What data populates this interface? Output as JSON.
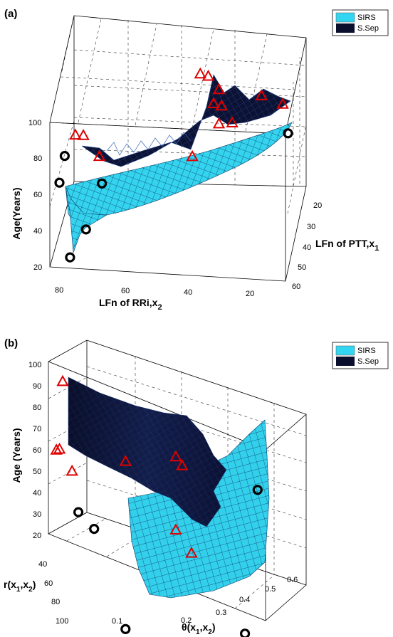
{
  "chart_data": [
    {
      "panel": "(a)",
      "type": "surface3d",
      "legend": {
        "placement": "top-right",
        "entries": [
          {
            "name": "SIRS",
            "color": "#33d6f0"
          },
          {
            "name": "S.Sep",
            "color": "#0a0f2e"
          }
        ]
      },
      "axes": {
        "x": {
          "label_main": "LFn of RRi,x",
          "label_sub": "2",
          "range": [
            0,
            90
          ],
          "ticks": [
            "80",
            "60",
            "40",
            "20"
          ]
        },
        "y": {
          "label_main": "LFn of PTT,x",
          "label_sub": "1",
          "range": [
            10,
            60
          ],
          "ticks": [
            "20",
            "30",
            "40",
            "50",
            "60"
          ]
        },
        "z": {
          "label": "Age(Years)",
          "range": [
            15,
            100
          ],
          "ticks": [
            "20",
            "40",
            "60",
            "80",
            "100"
          ]
        }
      },
      "grid": true,
      "sirs_points": [
        {
          "x": 84,
          "y": 15,
          "z": 22
        },
        {
          "x": 78,
          "y": 15,
          "z": 38
        },
        {
          "x": 88,
          "y": 15,
          "z": 63
        },
        {
          "x": 72,
          "y": 15,
          "z": 64
        },
        {
          "x": 86,
          "y": 15,
          "z": 78
        },
        {
          "x": 2,
          "y": 15,
          "z": 98
        }
      ],
      "ssep_points": [
        {
          "x": 82,
          "y": 15,
          "z": 90
        },
        {
          "x": 79,
          "y": 15,
          "z": 90
        },
        {
          "x": 73,
          "y": 15,
          "z": 79
        },
        {
          "x": 38,
          "y": 15,
          "z": 82
        },
        {
          "x": 35,
          "y": 15,
          "z": 128
        },
        {
          "x": 32,
          "y": 15,
          "z": 127
        },
        {
          "x": 28,
          "y": 15,
          "z": 120
        },
        {
          "x": 30,
          "y": 15,
          "z": 112
        },
        {
          "x": 27,
          "y": 15,
          "z": 111
        },
        {
          "x": 28,
          "y": 15,
          "z": 101
        },
        {
          "x": 23,
          "y": 15,
          "z": 102
        },
        {
          "x": 12,
          "y": 15,
          "z": 118
        },
        {
          "x": 4,
          "y": 15,
          "z": 114
        }
      ]
    },
    {
      "panel": "(b)",
      "type": "surface3d",
      "legend": {
        "placement": "top-right",
        "entries": [
          {
            "name": "SIRS",
            "color": "#33d6f0"
          },
          {
            "name": "S.Sep",
            "color": "#0a0f2e"
          }
        ]
      },
      "axes": {
        "x": {
          "label_main": "θ(x",
          "label_mid": "1",
          "label_sep": ",x",
          "label_sub": "2",
          "label_end": ")",
          "range": [
            0,
            0.65
          ],
          "ticks": [
            "0.1",
            "0.2",
            "0.3",
            "0.4",
            "0.5",
            "0.6"
          ]
        },
        "y": {
          "label_main": "r(x",
          "label_mid": "1",
          "label_sep": ",x",
          "label_sub": "2",
          "label_end": ")",
          "range": [
            20,
            110
          ],
          "ticks": [
            "40",
            "60",
            "80",
            "100"
          ]
        },
        "z": {
          "label": "Age (Years)",
          "range": [
            15,
            100
          ],
          "ticks": [
            "20",
            "30",
            "40",
            "50",
            "60",
            "70",
            "80",
            "90",
            "100"
          ]
        }
      },
      "grid": true,
      "sirs_points": [
        {
          "x": 0.05,
          "y": 20,
          "z": 36
        },
        {
          "x": 0.1,
          "y": 20,
          "z": 31
        },
        {
          "x": 0.62,
          "y": 20,
          "z": 78
        },
        {
          "x": 0.58,
          "y": 20,
          "z": 9
        },
        {
          "x": 0.2,
          "y": 20,
          "z": -10
        }
      ],
      "ssep_points": [
        {
          "x": 0.0,
          "y": 20,
          "z": 94
        },
        {
          "x": -0.02,
          "y": 20,
          "z": 61
        },
        {
          "x": -0.01,
          "y": 20,
          "z": 62
        },
        {
          "x": 0.03,
          "y": 20,
          "z": 54
        },
        {
          "x": 0.2,
          "y": 20,
          "z": 68
        },
        {
          "x": 0.36,
          "y": 20,
          "z": 79
        },
        {
          "x": 0.38,
          "y": 20,
          "z": 76
        },
        {
          "x": 0.41,
          "y": 20,
          "z": 37
        },
        {
          "x": 0.36,
          "y": 20,
          "z": 45
        }
      ]
    }
  ]
}
